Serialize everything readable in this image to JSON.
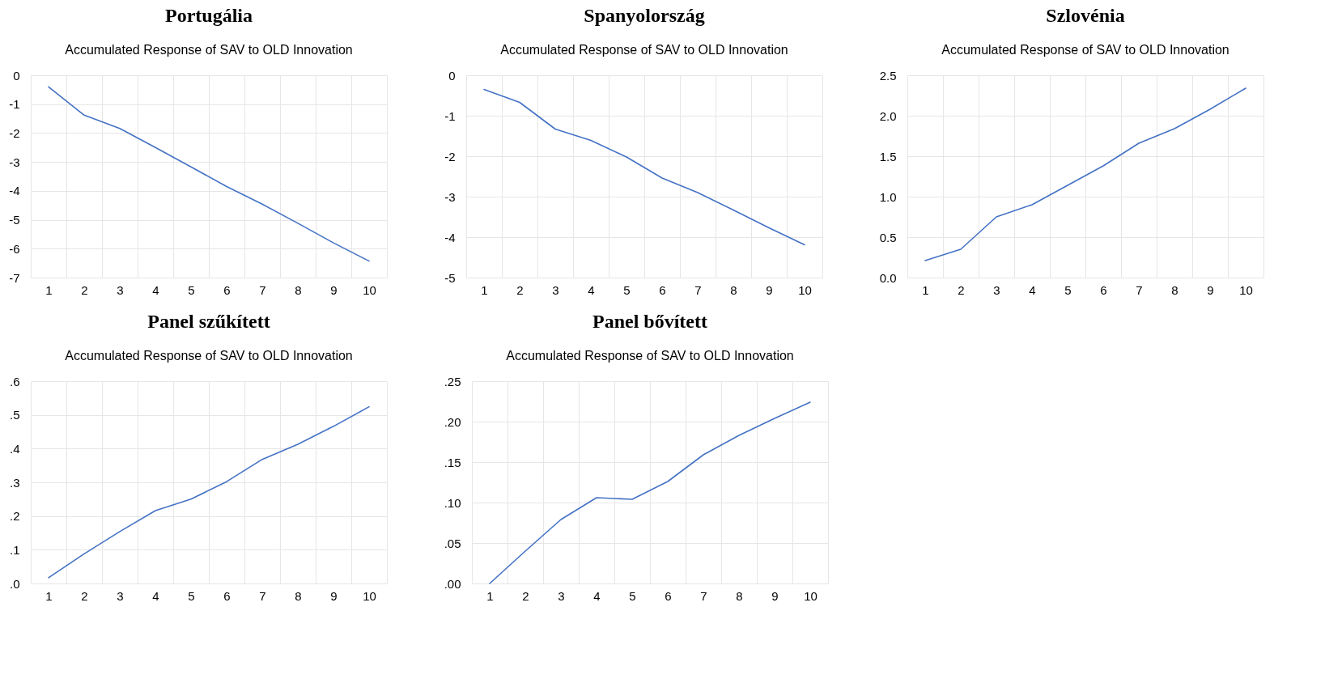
{
  "chart_data": [
    {
      "type": "line",
      "title": "Portugália",
      "subtitle": "Accumulated Response of SAV to OLD Innovation",
      "categories": [
        "1",
        "2",
        "3",
        "4",
        "5",
        "6",
        "7",
        "8",
        "9",
        "10"
      ],
      "values": [
        -0.4,
        -1.38,
        -1.84,
        -2.5,
        -3.17,
        -3.85,
        -4.46,
        -5.12,
        -5.8,
        -6.43
      ],
      "color": "#4472c4",
      "ylim": [
        -7,
        0
      ],
      "yticks": [
        -7,
        -6,
        -5,
        -4,
        -3,
        -2,
        -1,
        0
      ],
      "grid": true
    },
    {
      "type": "line",
      "title": "Spanyolország",
      "subtitle": "Accumulated Response of SAV to OLD Innovation",
      "categories": [
        "1",
        "2",
        "3",
        "4",
        "5",
        "6",
        "7",
        "8",
        "9",
        "10"
      ],
      "values": [
        -0.35,
        -0.67,
        -1.33,
        -1.61,
        -2.02,
        -2.54,
        -2.9,
        -3.33,
        -3.77,
        -4.19
      ],
      "color": "#4472c4",
      "ylim": [
        -5,
        0
      ],
      "yticks": [
        -5,
        -4,
        -3,
        -2,
        -1,
        0
      ],
      "grid": true
    },
    {
      "type": "line",
      "title": "Szlovénia",
      "subtitle": "Accumulated Response of SAV to OLD Innovation",
      "categories": [
        "1",
        "2",
        "3",
        "4",
        "5",
        "6",
        "7",
        "8",
        "9",
        "10"
      ],
      "values": [
        0.21,
        0.35,
        0.75,
        0.9,
        1.14,
        1.38,
        1.66,
        1.84,
        2.08,
        2.34
      ],
      "color": "#4472c4",
      "ylim": [
        0,
        2.5
      ],
      "yticks": [
        {
          "value": 0,
          "label": "0.0"
        },
        {
          "value": 0.5,
          "label": "0.5"
        },
        {
          "value": 1,
          "label": "1.0"
        },
        {
          "value": 1.5,
          "label": "1.5"
        },
        {
          "value": 2,
          "label": "2.0"
        },
        {
          "value": 2.5,
          "label": "2.5"
        }
      ],
      "grid": true
    },
    {
      "type": "line",
      "title": "Panel szűkített",
      "subtitle": "Accumulated Response of SAV to OLD Innovation",
      "categories": [
        "1",
        "2",
        "3",
        "4",
        "5",
        "6",
        "7",
        "8",
        "9",
        "10"
      ],
      "values": [
        0.017,
        0.088,
        0.154,
        0.216,
        0.25,
        0.302,
        0.368,
        0.413,
        0.466,
        0.524
      ],
      "color": "#4472c4",
      "ylim": [
        0,
        0.6
      ],
      "yticks": [
        {
          "value": 0,
          "label": ".0"
        },
        {
          "value": 0.1,
          "label": ".1"
        },
        {
          "value": 0.2,
          "label": ".2"
        },
        {
          "value": 0.3,
          "label": ".3"
        },
        {
          "value": 0.4,
          "label": ".4"
        },
        {
          "value": 0.5,
          "label": ".5"
        },
        {
          "value": 0.6,
          "label": ".6"
        }
      ],
      "grid": true
    },
    {
      "type": "line",
      "title": "Panel bővített",
      "subtitle": "Accumulated Response of SAV to OLD Innovation",
      "categories": [
        "1",
        "2",
        "3",
        "4",
        "5",
        "6",
        "7",
        "8",
        "9",
        "10"
      ],
      "values": [
        0.0,
        0.04,
        0.079,
        0.106,
        0.104,
        0.126,
        0.159,
        0.183,
        0.204,
        0.224
      ],
      "color": "#4472c4",
      "ylim": [
        0,
        0.25
      ],
      "yticks": [
        {
          "value": 0,
          "label": ".00"
        },
        {
          "value": 0.05,
          "label": ".05"
        },
        {
          "value": 0.1,
          "label": ".10"
        },
        {
          "value": 0.15,
          "label": ".15"
        },
        {
          "value": 0.2,
          "label": ".20"
        },
        {
          "value": 0.25,
          "label": ".25"
        }
      ],
      "grid": true
    }
  ]
}
